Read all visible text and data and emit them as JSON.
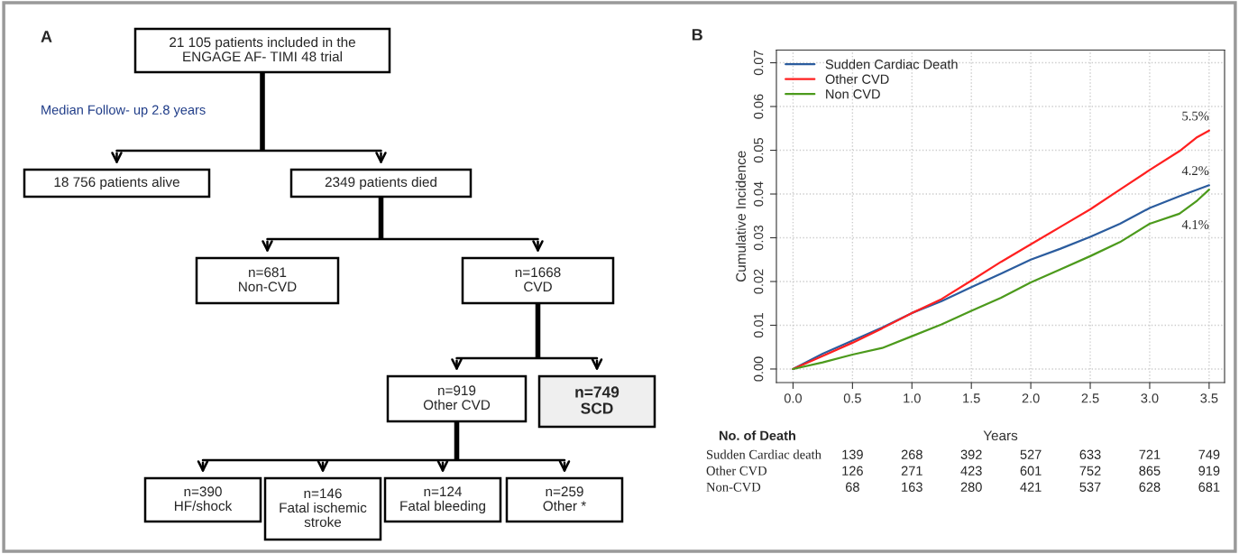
{
  "chart_data": [
    {
      "type": "other",
      "title": "A",
      "annotations": [
        "21 105 patients included in the\nENGAGE AF- TIMI 48 trial",
        "Median Follow- up 2.8 years",
        "18 756 patients alive",
        "2349 patients died",
        "n=681\nNon-CVD",
        "n=1668\nCVD",
        "n=919\nOther CVD",
        "n=749\nSCD",
        "n=390\nHF/shock",
        "n=146\nFatal ischemic\nstroke",
        "n=124\nFatal bleeding",
        "n=259\nOther *"
      ]
    },
    {
      "type": "line",
      "title": "B",
      "xlabel": "Years",
      "ylabel": "Cumulative Incidence",
      "xlim": [
        -0.14,
        3.63
      ],
      "ylim": [
        -0.0031,
        0.0729
      ],
      "xticks": [
        {
          "value": 0,
          "label": "0.0"
        },
        0.5,
        {
          "value": 1,
          "label": "1.0"
        },
        1.5,
        {
          "value": 2,
          "label": "2.0"
        },
        2.5,
        {
          "value": 3,
          "label": "3.0"
        },
        3.5
      ],
      "yticks": [
        {
          "value": 0,
          "label": "0.00"
        },
        0.01,
        0.02,
        0.03,
        0.04,
        0.05,
        0.06,
        0.07
      ],
      "grid": true,
      "legend": "top left",
      "line_style": "solid",
      "marker": "none",
      "series": [
        {
          "name": "Sudden Cardiac Death",
          "color": "#2b5c9e",
          "x": [
            0,
            0.25,
            0.5,
            0.75,
            1.0,
            1.25,
            1.5,
            1.75,
            2.0,
            2.25,
            2.5,
            2.75,
            3.0,
            3.25,
            3.5
          ],
          "values": [
            0,
            0.0035,
            0.0065,
            0.0095,
            0.0128,
            0.0155,
            0.0187,
            0.0218,
            0.025,
            0.0275,
            0.0302,
            0.0332,
            0.0368,
            0.0395,
            0.042
          ]
        },
        {
          "name": "Other CVD",
          "color": "#ff2020",
          "x": [
            0,
            0.25,
            0.5,
            0.75,
            1.0,
            1.25,
            1.5,
            1.75,
            2.0,
            2.25,
            2.5,
            2.75,
            3.0,
            3.25,
            3.4,
            3.5
          ],
          "values": [
            0,
            0.003,
            0.006,
            0.0093,
            0.0128,
            0.016,
            0.0202,
            0.0245,
            0.0285,
            0.0325,
            0.0365,
            0.041,
            0.0455,
            0.0498,
            0.053,
            0.0545
          ]
        },
        {
          "name": "Non CVD",
          "color": "#4c9a1c",
          "x": [
            0,
            0.25,
            0.5,
            0.75,
            1.0,
            1.25,
            1.5,
            1.75,
            2.0,
            2.25,
            2.5,
            2.75,
            3.0,
            3.25,
            3.4,
            3.5
          ],
          "values": [
            0,
            0.0015,
            0.0033,
            0.0048,
            0.0075,
            0.0102,
            0.0133,
            0.0163,
            0.0198,
            0.0228,
            0.0258,
            0.029,
            0.0332,
            0.0355,
            0.0385,
            0.041
          ]
        }
      ],
      "annotations": [
        "5.5%",
        "4.2%",
        "4.1%",
        "No. of Death",
        "Sudden Cardiac death",
        "139",
        "268",
        "392",
        "527",
        "633",
        "721",
        "749",
        "Other CVD",
        "126",
        "271",
        "423",
        "601",
        "752",
        "865",
        "919",
        "Non-CVD",
        "68",
        "163",
        "280",
        "421",
        "537",
        "628",
        "681"
      ]
    }
  ]
}
